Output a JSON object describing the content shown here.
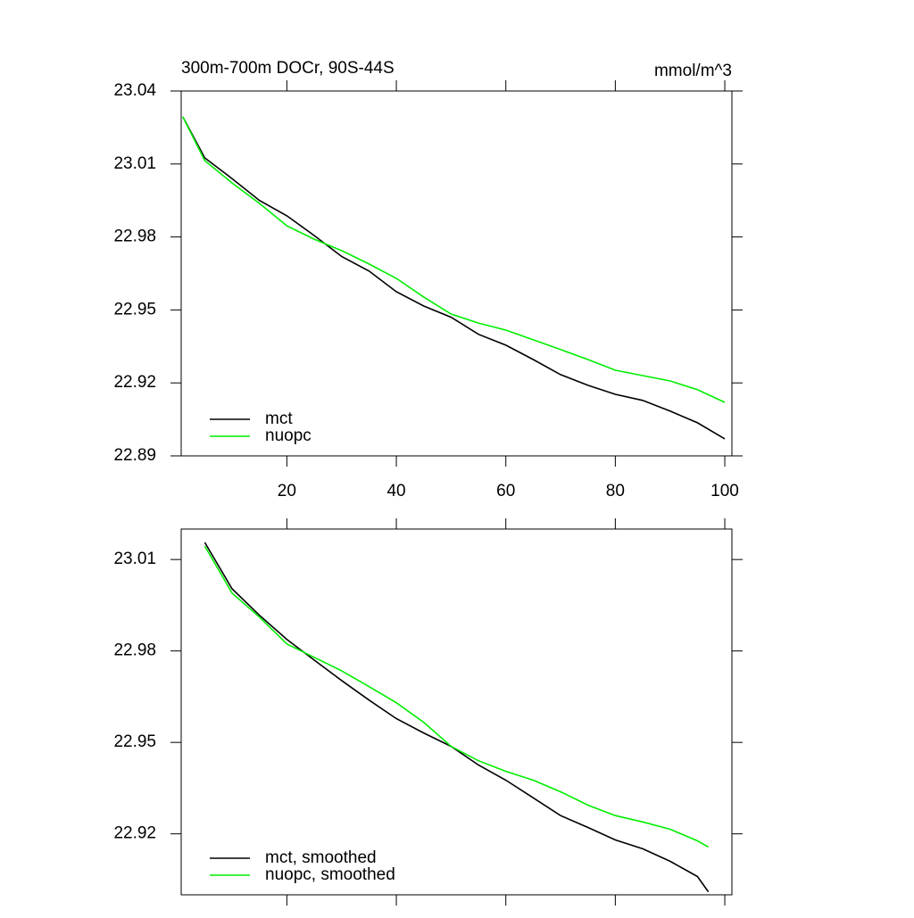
{
  "chart_data": [
    {
      "type": "line",
      "title": "300m-700m DOCr, 90S-44S",
      "units_label": "mmol/m^3",
      "x": [
        1,
        5,
        10,
        15,
        20,
        25,
        30,
        35,
        40,
        45,
        50,
        55,
        60,
        65,
        70,
        75,
        80,
        85,
        90,
        95,
        100
      ],
      "series": [
        {
          "name": "mct",
          "color": "#000000",
          "values": [
            23.0294,
            23.0125,
            23.004,
            22.995,
            22.9887,
            22.9806,
            22.972,
            22.966,
            22.9575,
            22.9516,
            22.947,
            22.94,
            22.9355,
            22.9296,
            22.9234,
            22.919,
            22.9153,
            22.9128,
            22.9084,
            22.9036,
            22.897
          ]
        },
        {
          "name": "nuopc",
          "color": "#00ee00",
          "values": [
            23.0294,
            23.0114,
            23.0022,
            22.9938,
            22.9846,
            22.9791,
            22.9744,
            22.9689,
            22.963,
            22.9553,
            22.9483,
            22.9446,
            22.9417,
            22.9377,
            22.9337,
            22.9296,
            22.9252,
            22.923,
            22.9208,
            22.9172,
            22.912
          ]
        }
      ],
      "xlim": [
        0.7,
        101.3
      ],
      "ylim": [
        22.89,
        23.04
      ],
      "xticks": [
        20,
        40,
        60,
        80,
        100
      ],
      "xtick_labels": true,
      "yticks": [
        23.04,
        23.01,
        22.98,
        22.95,
        22.92,
        22.89
      ],
      "legend": "lower left"
    },
    {
      "type": "line",
      "x": [
        5,
        10,
        15,
        20,
        25,
        30,
        35,
        40,
        45,
        50,
        55,
        60,
        65,
        70,
        75,
        80,
        85,
        90,
        95,
        97
      ],
      "series": [
        {
          "name": "mct, smoothed",
          "color": "#000000",
          "values": [
            23.0156,
            23.0004,
            22.9917,
            22.9838,
            22.977,
            22.9703,
            22.9639,
            22.9578,
            22.9531,
            22.9487,
            22.9426,
            22.9376,
            22.9318,
            22.926,
            22.9221,
            22.918,
            22.9151,
            22.911,
            22.906,
            22.901
          ]
        },
        {
          "name": "nuopc, smoothed",
          "color": "#00ee00",
          "values": [
            23.0144,
            22.999,
            22.9911,
            22.9823,
            22.9779,
            22.9735,
            22.9683,
            22.963,
            22.9566,
            22.9487,
            22.944,
            22.9405,
            22.9376,
            22.9338,
            22.9294,
            22.926,
            22.9239,
            22.9215,
            22.9177,
            22.9157
          ]
        }
      ],
      "xlim": [
        0.7,
        101.3
      ],
      "ylim": [
        22.9,
        23.02
      ],
      "xticks": [
        20,
        40,
        60,
        80,
        100
      ],
      "xtick_labels": false,
      "yticks": [
        23.01,
        22.98,
        22.95,
        22.92
      ],
      "legend": "lower left"
    }
  ]
}
